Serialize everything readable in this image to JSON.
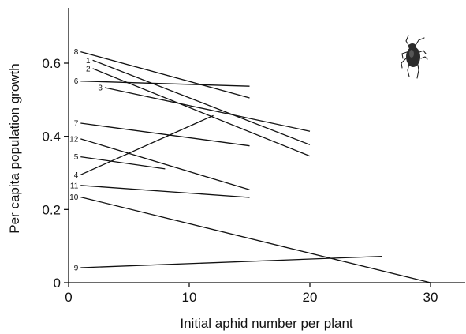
{
  "chart_data": {
    "type": "line",
    "title": "",
    "xlabel": "Initial aphid number per plant",
    "ylabel": "Per capita population growth",
    "xlim": [
      0,
      32
    ],
    "ylim": [
      0,
      0.75
    ],
    "xticks": [
      0,
      10,
      20,
      30
    ],
    "yticks": [
      0,
      0.2,
      0.4,
      0.6
    ],
    "xtick_labels": [
      "0",
      "10",
      "20",
      "30"
    ],
    "ytick_labels": [
      "0",
      "0.2",
      "0.4",
      "0.6"
    ],
    "grid": false,
    "legend": "none",
    "line_color": "#111111",
    "icon": "aphid-icon",
    "series": [
      {
        "name": "8",
        "x": [
          1,
          15
        ],
        "y": [
          0.631,
          0.505
        ]
      },
      {
        "name": "1",
        "x": [
          2,
          20
        ],
        "y": [
          0.608,
          0.377
        ]
      },
      {
        "name": "2",
        "x": [
          2,
          20
        ],
        "y": [
          0.585,
          0.346
        ]
      },
      {
        "name": "6",
        "x": [
          1,
          15
        ],
        "y": [
          0.551,
          0.537
        ]
      },
      {
        "name": "3",
        "x": [
          3,
          20
        ],
        "y": [
          0.533,
          0.414
        ]
      },
      {
        "name": "7",
        "x": [
          1,
          15
        ],
        "y": [
          0.436,
          0.374
        ]
      },
      {
        "name": "12",
        "x": [
          1,
          15
        ],
        "y": [
          0.393,
          0.254
        ]
      },
      {
        "name": "5",
        "x": [
          1,
          8
        ],
        "y": [
          0.344,
          0.311
        ]
      },
      {
        "name": "4",
        "x": [
          1,
          12
        ],
        "y": [
          0.295,
          0.457
        ]
      },
      {
        "name": "11",
        "x": [
          1,
          15
        ],
        "y": [
          0.266,
          0.233
        ]
      },
      {
        "name": "10",
        "x": [
          1,
          30
        ],
        "y": [
          0.234,
          0.0
        ]
      },
      {
        "name": "9",
        "x": [
          1,
          26
        ],
        "y": [
          0.041,
          0.072
        ]
      }
    ]
  }
}
